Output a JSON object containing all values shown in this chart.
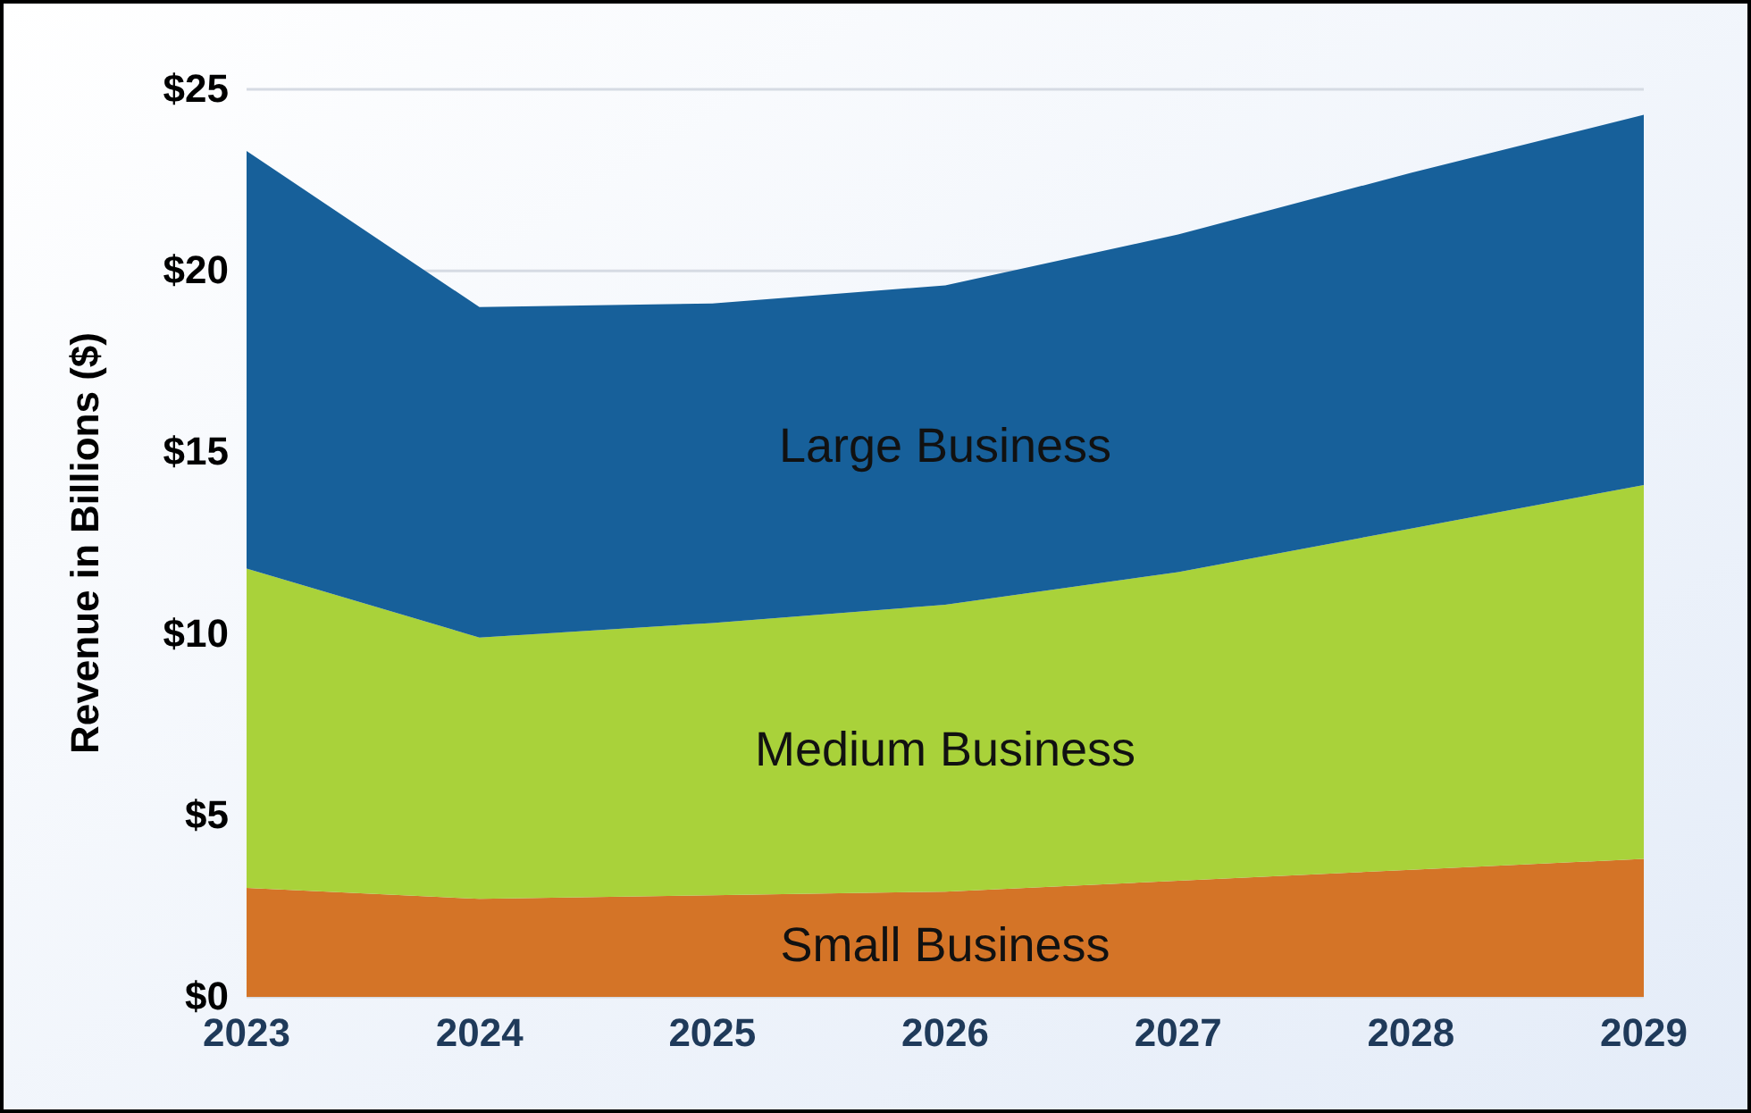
{
  "chart_data": {
    "type": "area",
    "stacked": true,
    "ylabel": "Revenue in Billions ($)",
    "categories": [
      "2023",
      "2024",
      "2025",
      "2026",
      "2027",
      "2028",
      "2029"
    ],
    "series": [
      {
        "name": "Small Business",
        "color": "#d47427",
        "values": [
          3.0,
          2.7,
          2.8,
          2.9,
          3.2,
          3.5,
          3.8
        ]
      },
      {
        "name": "Medium Business",
        "color": "#a9d23a",
        "values": [
          8.8,
          7.2,
          7.5,
          7.9,
          8.5,
          9.4,
          10.3
        ]
      },
      {
        "name": "Large Business",
        "color": "#17609a",
        "values": [
          11.5,
          9.1,
          8.8,
          8.8,
          9.3,
          9.8,
          10.2
        ]
      }
    ],
    "ylim": [
      0,
      25
    ],
    "yticks": [
      {
        "value": 0,
        "label": "$0"
      },
      {
        "value": 5,
        "label": "$5"
      },
      {
        "value": 10,
        "label": "$10"
      },
      {
        "value": 15,
        "label": "$15"
      },
      {
        "value": 20,
        "label": "$20"
      },
      {
        "value": 25,
        "label": "$25"
      }
    ],
    "grid": "y",
    "legend": false
  }
}
